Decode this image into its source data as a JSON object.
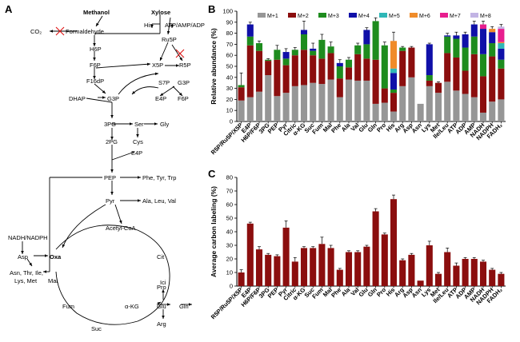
{
  "panel_a": {
    "label": "A",
    "nodes": {
      "methanol": "Methanol",
      "xylose": "Xylose",
      "co2": "CO₂",
      "formaldehyde": "Formaldehyde",
      "his": "His",
      "atp_amp_adp": "ATP/AMP/ADP",
      "ru5p": "Ru5P",
      "h6p": "H6P",
      "f6p_a": "F6P",
      "x5p": "X5P",
      "r5p": "R5P",
      "s7p": "S7P",
      "g3p_b": "G3P",
      "f16dp": "F16dP",
      "dhap": "DHAP",
      "g3p_a": "G3P",
      "e4p_a": "E4P",
      "f6p_b": "F6P",
      "pg3": "3PG",
      "ser": "Ser",
      "gly": "Gly",
      "cys": "Cys",
      "pg2": "2PG",
      "e4p_b": "E4P",
      "pep": "PEP",
      "phe_tyr_trp": "Phe, Tyr, Trp",
      "pyr": "Pyr",
      "ala_leu_val": "Ala, Leu, Val",
      "acetyl_coa": "Acetyl-CoA",
      "nadh_nadph": "NADH/NADPH",
      "asp": "Asp",
      "oxa": "Oxa",
      "cit": "Cit",
      "asn_group_1": "Asn, Thr, Ile,",
      "asn_group_2": "Lys, Met",
      "mal": "Mal",
      "ici": "Ici",
      "fum": "Fum",
      "akg": "α-KG",
      "glu": "Glu",
      "gln": "Gln",
      "pro": "Pro",
      "arg": "Arg",
      "suc": "Suc"
    }
  },
  "chart_data": [
    {
      "panel": "B",
      "type": "bar",
      "stacked": true,
      "ylabel": "Relative abundance (%)",
      "ylim": [
        0,
        100
      ],
      "yticks": [
        0,
        10,
        20,
        30,
        40,
        50,
        60,
        70,
        80,
        90,
        100
      ],
      "categories": [
        "R5P/Ru5P/X5P",
        "E4P",
        "H6P/F6P",
        "3PG",
        "PEP",
        "Pyr",
        "Citric",
        "α-KG",
        "Suc",
        "Fum",
        "Mal",
        "Phe",
        "Ala",
        "Val",
        "Glu",
        "Gln",
        "Pro",
        "His",
        "Arg",
        "Asp",
        "Asn",
        "Lys",
        "Met",
        "Ile/Leu",
        "ATP",
        "ADP",
        "AMP",
        "NADH",
        "NADPH",
        "FADH₂"
      ],
      "series": [
        {
          "name": "M+1",
          "color": "#969696",
          "values": [
            19,
            22,
            27,
            42,
            23,
            26,
            32,
            33,
            35,
            34,
            38,
            22,
            38,
            37,
            37,
            16,
            17,
            9,
            32,
            40,
            16,
            32,
            26,
            36,
            28,
            25,
            22,
            8,
            18,
            20
          ]
        },
        {
          "name": "M+2",
          "color": "#8b0e0e",
          "values": [
            12,
            47,
            37,
            13,
            33,
            25,
            28,
            32,
            25,
            23,
            24,
            17,
            11,
            24,
            20,
            40,
            13,
            17,
            32,
            27,
            0,
            5,
            9,
            26,
            30,
            21,
            39,
            33,
            41,
            28
          ]
        },
        {
          "name": "M+3",
          "color": "#1e8c1e",
          "values": [
            2,
            8,
            7,
            1,
            9,
            6,
            5,
            14,
            4,
            17,
            6,
            11,
            7,
            8,
            13,
            35,
            39,
            3,
            3,
            0,
            0,
            5,
            0,
            15,
            17,
            21,
            16,
            20,
            12,
            8
          ]
        },
        {
          "name": "M+4",
          "color": "#1010a8",
          "values": [
            0,
            11,
            0,
            0,
            0,
            6,
            0,
            4,
            2,
            0,
            0,
            3,
            0,
            0,
            13,
            0,
            0,
            15,
            0,
            0,
            0,
            28,
            0,
            1,
            3,
            12,
            11,
            23,
            10,
            10
          ]
        },
        {
          "name": "M+5",
          "color": "#2fb7b7",
          "values": [
            0,
            0,
            0,
            0,
            0,
            0,
            0,
            0,
            0,
            0,
            0,
            0,
            0,
            0,
            0,
            0,
            0,
            4,
            0,
            0,
            0,
            0,
            0,
            0,
            0,
            0,
            0,
            0,
            0,
            5
          ]
        },
        {
          "name": "M+6",
          "color": "#f08c2a",
          "values": [
            0,
            0,
            0,
            0,
            0,
            0,
            0,
            0,
            0,
            0,
            0,
            0,
            0,
            0,
            0,
            0,
            0,
            25,
            0,
            0,
            0,
            0,
            0,
            0,
            0,
            0,
            0,
            0,
            3,
            1
          ]
        },
        {
          "name": "M+7",
          "color": "#e81e8e",
          "values": [
            0,
            0,
            0,
            0,
            0,
            0,
            0,
            0,
            0,
            0,
            0,
            0,
            0,
            0,
            0,
            0,
            0,
            0,
            0,
            0,
            0,
            0,
            0,
            0,
            0,
            0,
            0,
            4,
            0,
            12
          ]
        },
        {
          "name": "M+8",
          "color": "#c2b4e4",
          "values": [
            0,
            0,
            0,
            0,
            0,
            0,
            0,
            0,
            0,
            0,
            0,
            0,
            0,
            0,
            0,
            0,
            0,
            0,
            0,
            0,
            0,
            0,
            0,
            0,
            0,
            0,
            0,
            0,
            0,
            2
          ]
        }
      ],
      "errors": [
        11,
        2,
        2,
        1,
        4,
        3,
        2,
        8,
        5,
        5,
        4,
        3,
        2,
        2,
        2,
        3,
        3,
        8,
        1,
        1,
        0,
        1,
        1,
        2,
        3,
        2,
        3,
        3,
        2,
        2
      ],
      "legend_position": "top"
    },
    {
      "panel": "C",
      "type": "bar",
      "ylabel": "Average carbon labeling (%)",
      "ylim": [
        0,
        80
      ],
      "yticks": [
        0,
        10,
        20,
        30,
        40,
        50,
        60,
        70,
        80
      ],
      "color": "#8b0e0e",
      "categories": [
        "R5P/Ru5P/X5P",
        "E4P",
        "H6P/F6P",
        "3PG",
        "PEP",
        "Pyr",
        "Citric",
        "α-KG",
        "Suc",
        "Fum",
        "Mal",
        "Phe",
        "Ala",
        "Val",
        "Glu",
        "Gln",
        "Pro",
        "His",
        "Arg",
        "Asp",
        "Asn",
        "Lys",
        "Met",
        "Ile/Leu",
        "ATP",
        "ADP",
        "AMP",
        "NADH",
        "NADPH",
        "FADH₂"
      ],
      "values": [
        10,
        46,
        27,
        23,
        22,
        43,
        18,
        28,
        28,
        31,
        28,
        12,
        25,
        25,
        29,
        55,
        38,
        64,
        19,
        23,
        4,
        30,
        9,
        25,
        15,
        20,
        20,
        18,
        12,
        9
      ],
      "errors": [
        2,
        1,
        2,
        1,
        1,
        5,
        3,
        1,
        1,
        5,
        2,
        1,
        1,
        1,
        1,
        2,
        1,
        3,
        1,
        1,
        0,
        3,
        1,
        3,
        2,
        1,
        1,
        1,
        1,
        1
      ]
    }
  ]
}
